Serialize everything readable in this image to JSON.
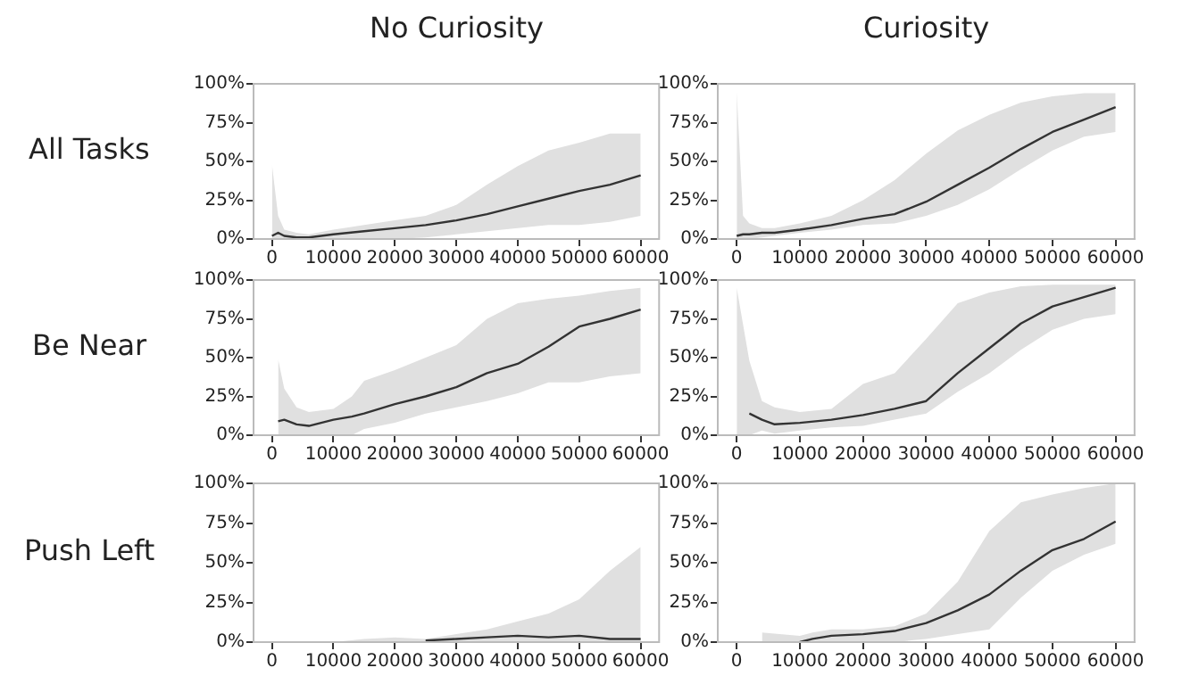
{
  "chart_data": [
    {
      "type": "line",
      "title": "No Curiosity",
      "ylabel": "All Tasks",
      "xlim": [
        -3000,
        63000
      ],
      "xticks": [
        0,
        10000,
        20000,
        30000,
        40000,
        50000,
        60000
      ],
      "ylim": [
        0,
        100
      ],
      "yticks": [
        {
          "value": 0,
          "label": "0%"
        },
        {
          "value": 25,
          "label": "25%"
        },
        {
          "value": 50,
          "label": "50%"
        },
        {
          "value": 75,
          "label": "75%"
        },
        {
          "value": 100,
          "label": "100%"
        }
      ],
      "grid": false,
      "legend": false,
      "series": [
        {
          "color": "#333333",
          "x": [
            0,
            1000,
            2000,
            4000,
            6000,
            10000,
            15000,
            20000,
            25000,
            30000,
            35000,
            40000,
            45000,
            50000,
            55000,
            60000
          ],
          "values": [
            2,
            4,
            2,
            1,
            1,
            3,
            5,
            7,
            9,
            12,
            16,
            21,
            26,
            31,
            35,
            41
          ],
          "lower": [
            0,
            0,
            0,
            0,
            0,
            0,
            0,
            0,
            1,
            3,
            5,
            7,
            9,
            9,
            11,
            15
          ],
          "upper": [
            48,
            15,
            6,
            4,
            3,
            6,
            9,
            12,
            15,
            22,
            35,
            47,
            57,
            62,
            68,
            68
          ]
        }
      ]
    },
    {
      "type": "line",
      "title": "Curiosity",
      "xlim": [
        -3000,
        63000
      ],
      "xticks": [
        0,
        10000,
        20000,
        30000,
        40000,
        50000,
        60000
      ],
      "ylim": [
        0,
        100
      ],
      "yticks": [
        {
          "value": 0,
          "label": "0%"
        },
        {
          "value": 25,
          "label": "25%"
        },
        {
          "value": 50,
          "label": "50%"
        },
        {
          "value": 75,
          "label": "75%"
        },
        {
          "value": 100,
          "label": "100%"
        }
      ],
      "grid": false,
      "legend": false,
      "series": [
        {
          "color": "#333333",
          "x": [
            0,
            1000,
            2000,
            4000,
            6000,
            10000,
            15000,
            20000,
            25000,
            30000,
            35000,
            40000,
            45000,
            50000,
            55000,
            60000
          ],
          "values": [
            2,
            3,
            3,
            4,
            4,
            6,
            9,
            13,
            16,
            24,
            35,
            46,
            58,
            69,
            77,
            85
          ],
          "lower": [
            0,
            0,
            0,
            1,
            2,
            4,
            6,
            9,
            10,
            15,
            22,
            32,
            45,
            57,
            66,
            69
          ],
          "upper": [
            95,
            15,
            10,
            7,
            7,
            10,
            15,
            25,
            38,
            55,
            70,
            80,
            88,
            92,
            94,
            94
          ]
        }
      ]
    },
    {
      "type": "line",
      "ylabel": "Be Near",
      "xlim": [
        -3000,
        63000
      ],
      "xticks": [
        0,
        10000,
        20000,
        30000,
        40000,
        50000,
        60000
      ],
      "ylim": [
        0,
        100
      ],
      "yticks": [
        {
          "value": 0,
          "label": "0%"
        },
        {
          "value": 25,
          "label": "25%"
        },
        {
          "value": 50,
          "label": "50%"
        },
        {
          "value": 75,
          "label": "75%"
        },
        {
          "value": 100,
          "label": "100%"
        }
      ],
      "grid": false,
      "legend": false,
      "series": [
        {
          "color": "#333333",
          "x": [
            1000,
            2000,
            4000,
            6000,
            10000,
            13000,
            15000,
            20000,
            25000,
            30000,
            35000,
            40000,
            45000,
            50000,
            55000,
            60000
          ],
          "values": [
            9,
            10,
            7,
            6,
            10,
            12,
            14,
            20,
            25,
            31,
            40,
            46,
            57,
            70,
            75,
            81
          ],
          "lower": [
            0,
            0,
            0,
            0,
            0,
            0,
            4,
            8,
            14,
            18,
            22,
            27,
            34,
            34,
            38,
            40
          ],
          "upper": [
            49,
            30,
            18,
            15,
            17,
            25,
            35,
            42,
            50,
            58,
            75,
            85,
            88,
            90,
            93,
            95
          ]
        }
      ]
    },
    {
      "type": "line",
      "xlim": [
        -3000,
        63000
      ],
      "xticks": [
        0,
        10000,
        20000,
        30000,
        40000,
        50000,
        60000
      ],
      "ylim": [
        0,
        100
      ],
      "yticks": [
        {
          "value": 0,
          "label": "0%"
        },
        {
          "value": 25,
          "label": "25%"
        },
        {
          "value": 50,
          "label": "50%"
        },
        {
          "value": 75,
          "label": "75%"
        },
        {
          "value": 100,
          "label": "100%"
        }
      ],
      "grid": false,
      "legend": false,
      "series": [
        {
          "color": "#333333",
          "x": [
            0,
            2000,
            4000,
            6000,
            10000,
            15000,
            20000,
            25000,
            30000,
            35000,
            40000,
            45000,
            50000,
            55000,
            60000
          ],
          "values": [
            null,
            14,
            10,
            7,
            8,
            10,
            13,
            17,
            22,
            40,
            56,
            72,
            83,
            89,
            95
          ],
          "lower": [
            0,
            0,
            3,
            1,
            3,
            5,
            6,
            10,
            14,
            28,
            40,
            55,
            68,
            75,
            78
          ],
          "upper": [
            95,
            48,
            22,
            18,
            15,
            17,
            33,
            40,
            62,
            85,
            92,
            96,
            97,
            97,
            97
          ]
        }
      ]
    },
    {
      "type": "line",
      "ylabel": "Push Left",
      "xlim": [
        -3000,
        63000
      ],
      "xticks": [
        0,
        10000,
        20000,
        30000,
        40000,
        50000,
        60000
      ],
      "ylim": [
        0,
        100
      ],
      "yticks": [
        {
          "value": 0,
          "label": "0%"
        },
        {
          "value": 25,
          "label": "25%"
        },
        {
          "value": 50,
          "label": "50%"
        },
        {
          "value": 75,
          "label": "75%"
        },
        {
          "value": 100,
          "label": "100%"
        }
      ],
      "grid": false,
      "legend": false,
      "series": [
        {
          "color": "#333333",
          "x": [
            0,
            10000,
            15000,
            20000,
            25000,
            30000,
            35000,
            40000,
            45000,
            50000,
            55000,
            60000
          ],
          "values": [
            null,
            null,
            null,
            null,
            1,
            2,
            3,
            4,
            3,
            4,
            2,
            2
          ],
          "lower": [
            0,
            0,
            0,
            0,
            0,
            0,
            0,
            0,
            0,
            0,
            0,
            0
          ],
          "upper": [
            0,
            0,
            2,
            3,
            2,
            5,
            8,
            13,
            18,
            27,
            45,
            60
          ]
        }
      ]
    },
    {
      "type": "line",
      "xlim": [
        -3000,
        63000
      ],
      "xticks": [
        0,
        10000,
        20000,
        30000,
        40000,
        50000,
        60000
      ],
      "ylim": [
        0,
        100
      ],
      "yticks": [
        {
          "value": 0,
          "label": "0%"
        },
        {
          "value": 25,
          "label": "25%"
        },
        {
          "value": 50,
          "label": "50%"
        },
        {
          "value": 75,
          "label": "75%"
        },
        {
          "value": 100,
          "label": "100%"
        }
      ],
      "grid": false,
      "legend": false,
      "series": [
        {
          "color": "#333333",
          "x": [
            4000,
            10000,
            12000,
            15000,
            20000,
            25000,
            30000,
            35000,
            40000,
            45000,
            50000,
            55000,
            60000
          ],
          "values": [
            null,
            0,
            2,
            4,
            5,
            7,
            12,
            20,
            30,
            45,
            58,
            65,
            76
          ],
          "lower": [
            0,
            0,
            0,
            0,
            0,
            0,
            2,
            5,
            8,
            28,
            45,
            55,
            62
          ],
          "upper": [
            6,
            4,
            6,
            8,
            8,
            10,
            18,
            38,
            70,
            88,
            93,
            97,
            100
          ]
        }
      ]
    }
  ]
}
